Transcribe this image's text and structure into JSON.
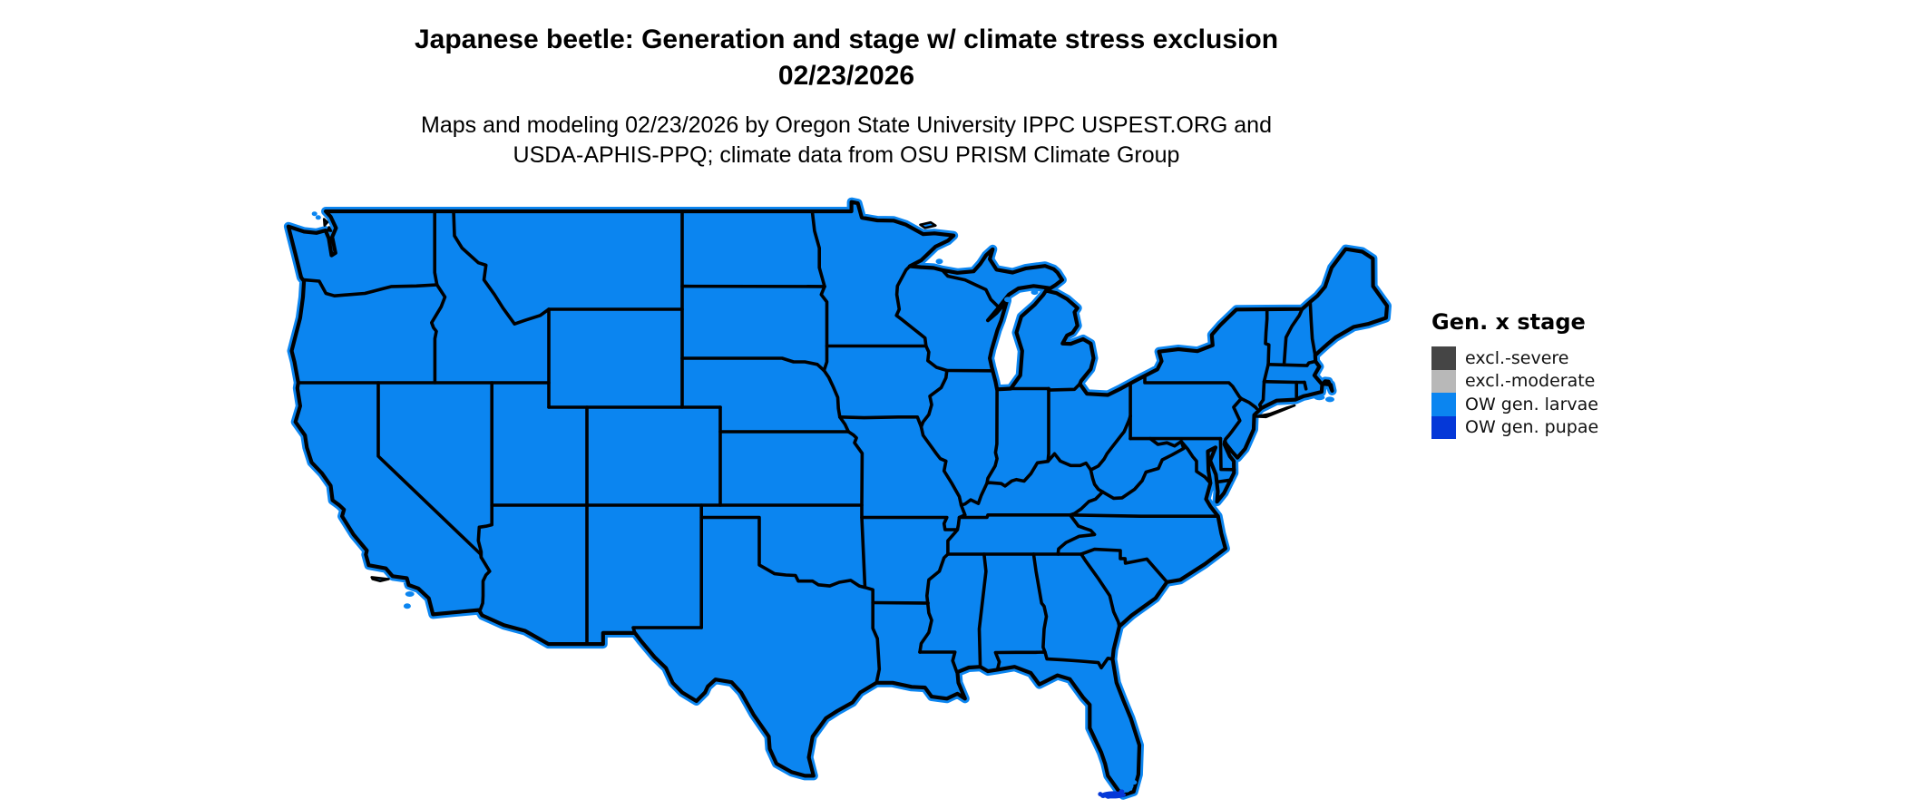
{
  "title": {
    "line1": "Japanese beetle: Generation and stage w/ climate stress exclusion",
    "line2": "02/23/2026"
  },
  "subtitle": {
    "line1": "Maps and modeling 02/23/2026 by Oregon State University IPPC USPEST.ORG and",
    "line2": "USDA-APHIS-PPQ; climate data from OSU PRISM Climate Group"
  },
  "legend": {
    "title": "Gen. x stage",
    "items": [
      {
        "label": "excl.-severe",
        "color": "#454545"
      },
      {
        "label": "excl.-moderate",
        "color": "#b8b8b8"
      },
      {
        "label": "OW gen. larvae",
        "color": "#0b85f0"
      },
      {
        "label": "OW gen. pupae",
        "color": "#0538d8"
      }
    ]
  },
  "map": {
    "region": "Conterminous United States with state borders",
    "fill_color": "#0b85f0",
    "accent_color": "#0538d8",
    "border_color": "#000000",
    "water_color": "#ffffff",
    "background": "#ffffff"
  }
}
